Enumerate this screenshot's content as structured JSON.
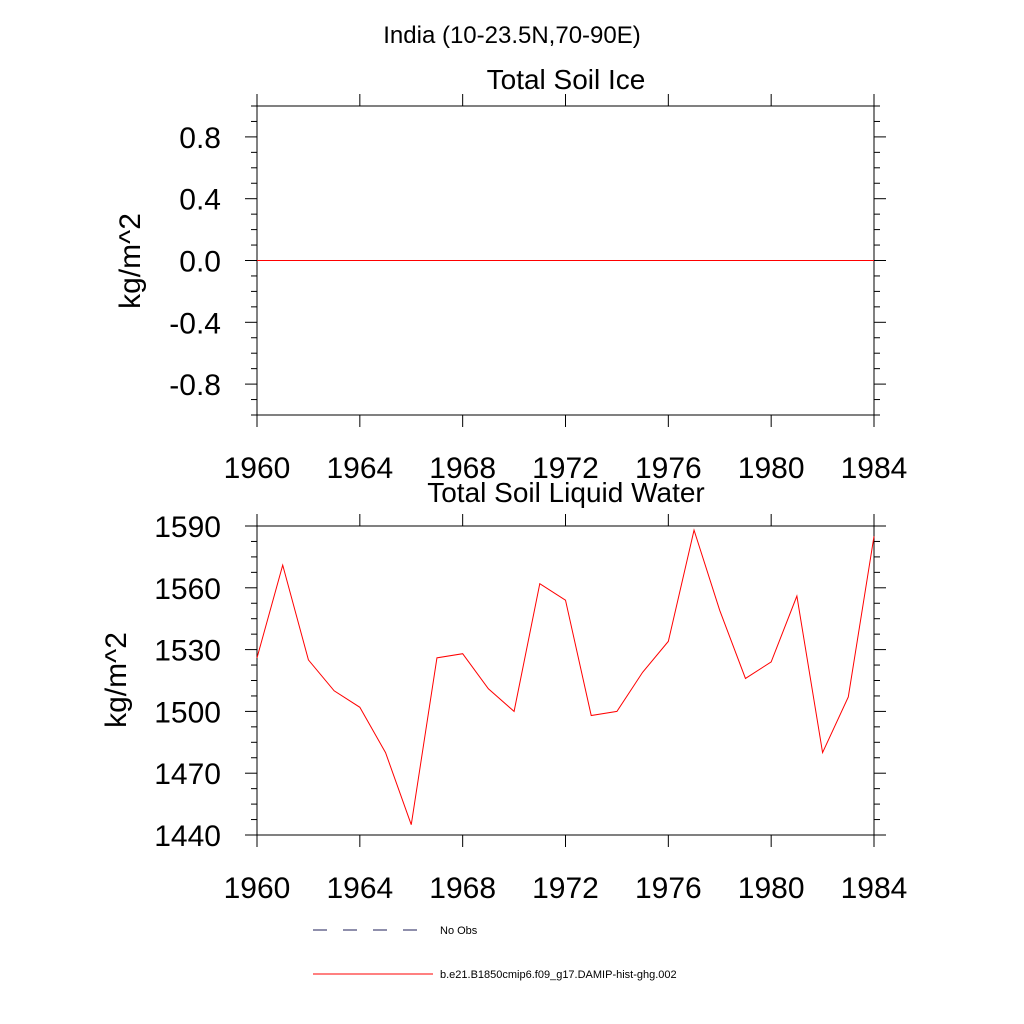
{
  "figure_title": "India (10-23.5N,70-90E)",
  "chart_data": [
    {
      "type": "line",
      "title": "Total Soil Ice",
      "xlabel": "",
      "ylabel": "kg/m^2",
      "xlim": [
        1960,
        1984
      ],
      "ylim": [
        -1.0,
        1.0
      ],
      "x_ticks": [
        "1960",
        "1964",
        "1968",
        "1972",
        "1976",
        "1980",
        "1984"
      ],
      "y_ticks": [
        "0.8",
        "0.4",
        "0.0",
        "-0.4",
        "-0.8"
      ],
      "series": [
        {
          "name": "b.e21.B1850cmip6.f09_g17.DAMIP-hist-ghg.002",
          "color": "#ff0000",
          "x": [
            1960,
            1961,
            1962,
            1963,
            1964,
            1965,
            1966,
            1967,
            1968,
            1969,
            1970,
            1971,
            1972,
            1973,
            1974,
            1975,
            1976,
            1977,
            1978,
            1979,
            1980,
            1981,
            1982,
            1983,
            1984
          ],
          "values": [
            0,
            0,
            0,
            0,
            0,
            0,
            0,
            0,
            0,
            0,
            0,
            0,
            0,
            0,
            0,
            0,
            0,
            0,
            0,
            0,
            0,
            0,
            0,
            0,
            0
          ]
        }
      ]
    },
    {
      "type": "line",
      "title": "Total Soil Liquid Water",
      "xlabel": "",
      "ylabel": "kg/m^2",
      "xlim": [
        1960,
        1984
      ],
      "ylim": [
        1440,
        1590
      ],
      "x_ticks": [
        "1960",
        "1964",
        "1968",
        "1972",
        "1976",
        "1980",
        "1984"
      ],
      "y_ticks": [
        "1590",
        "1560",
        "1530",
        "1500",
        "1470",
        "1440"
      ],
      "series": [
        {
          "name": "b.e21.B1850cmip6.f09_g17.DAMIP-hist-ghg.002",
          "color": "#ff0000",
          "x": [
            1960,
            1961,
            1962,
            1963,
            1964,
            1965,
            1966,
            1967,
            1968,
            1969,
            1970,
            1971,
            1972,
            1973,
            1974,
            1975,
            1976,
            1977,
            1978,
            1979,
            1980,
            1981,
            1982,
            1983,
            1984
          ],
          "values": [
            1526,
            1571,
            1525,
            1510,
            1502,
            1480,
            1445,
            1526,
            1528,
            1511,
            1500,
            1562,
            1554,
            1498,
            1500,
            1519,
            1534,
            1588,
            1549,
            1516,
            1524,
            1556,
            1480,
            1507,
            1585
          ]
        }
      ]
    }
  ],
  "legend": {
    "items": [
      {
        "label": "No Obs",
        "style": "dashed",
        "color": "#1f1f5a"
      },
      {
        "label": "b.e21.B1850cmip6.f09_g17.DAMIP-hist-ghg.002",
        "style": "solid",
        "color": "#ff0000"
      }
    ]
  }
}
